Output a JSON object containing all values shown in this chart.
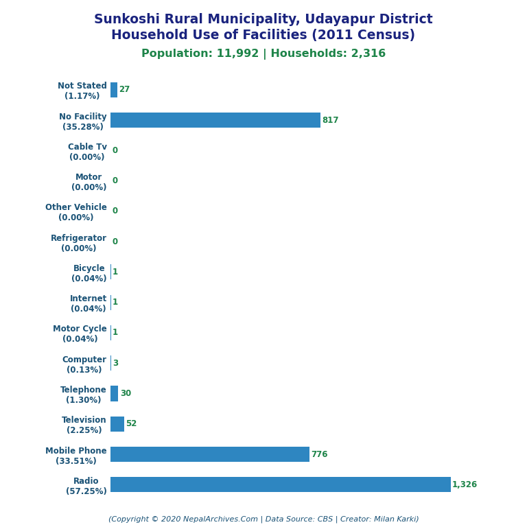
{
  "title_line1": "Sunkoshi Rural Municipality, Udayapur District",
  "title_line2": "Household Use of Facilities (2011 Census)",
  "subtitle": "Population: 11,992 | Households: 2,316",
  "footer": "(Copyright © 2020 NepalArchives.Com | Data Source: CBS | Creator: Milan Karki)",
  "categories": [
    "Not Stated\n(1.17%)",
    "No Facility\n(35.28%)",
    "Cable Tv\n(0.00%)",
    "Motor\n(0.00%)",
    "Other Vehicle\n(0.00%)",
    "Refrigerator\n(0.00%)",
    "Bicycle\n(0.04%)",
    "Internet\n(0.04%)",
    "Motor Cycle\n(0.04%)",
    "Computer\n(0.13%)",
    "Telephone\n(1.30%)",
    "Television\n(2.25%)",
    "Mobile Phone\n(33.51%)",
    "Radio\n(57.25%)"
  ],
  "values": [
    27,
    817,
    0,
    0,
    0,
    0,
    1,
    1,
    1,
    3,
    30,
    52,
    776,
    1326
  ],
  "bar_color": "#2e86c1",
  "label_color": "#1a5276",
  "value_color": "#1e8449",
  "title_color": "#1a237e",
  "subtitle_color": "#1e8449",
  "footer_color": "#1a5276",
  "background_color": "#ffffff",
  "xlim": [
    0,
    1500
  ]
}
